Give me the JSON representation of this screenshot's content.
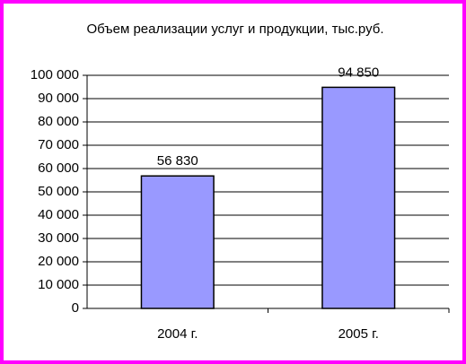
{
  "chart_data": {
    "type": "bar",
    "title": "Объем реализации услуг и продукции, тыс.руб.",
    "categories": [
      "2004 г.",
      "2005 г."
    ],
    "values": [
      56830,
      94850
    ],
    "value_labels": [
      "56 830",
      "94 850"
    ],
    "color": "#9999ff",
    "ylim": [
      0,
      100000
    ],
    "yticks": [
      0,
      {
        "value": 10000,
        "label": "10 000"
      },
      {
        "value": 20000,
        "label": "20 000"
      },
      {
        "value": 30000,
        "label": "30 000"
      },
      {
        "value": 40000,
        "label": "40 000"
      },
      {
        "value": 50000,
        "label": "50 000"
      },
      {
        "value": 60000,
        "label": "60 000"
      },
      {
        "value": 70000,
        "label": "70 000"
      },
      {
        "value": 80000,
        "label": "80 000"
      },
      {
        "value": 90000,
        "label": "90 000"
      },
      {
        "value": 100000,
        "label": "100 000"
      }
    ],
    "grid": true
  }
}
